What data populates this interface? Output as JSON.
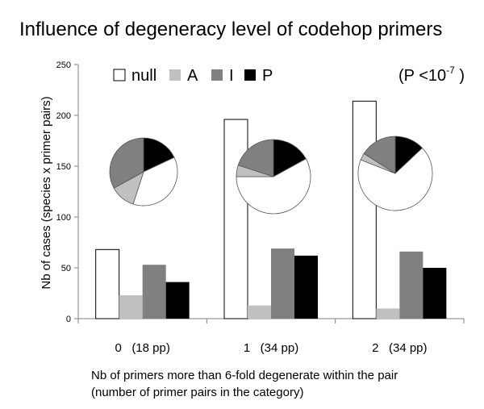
{
  "chart_data": {
    "type": "bar",
    "title": "Influence of degeneracy level of codehop primers",
    "annotation": {
      "prefix": "(P <10",
      "exponent": "-7",
      "suffix": " )"
    },
    "ylabel": "Nb of cases (species x primer pairs)",
    "xlabel_lines": [
      "Nb of primers more than 6-fold degenerate within the pair",
      "(number of primer pairs in the category)"
    ],
    "ylim": [
      0,
      250
    ],
    "yticks": [
      0,
      50,
      100,
      150,
      200,
      250
    ],
    "categories": [
      "0   (18 pp)",
      "1   (34 pp)",
      "2   (34 pp)"
    ],
    "legend_position": "top",
    "series": [
      {
        "name": "null",
        "color": "#ffffff",
        "values": [
          68,
          196,
          214
        ]
      },
      {
        "name": "A",
        "color": "#c0c0c0",
        "values": [
          23,
          13,
          10
        ]
      },
      {
        "name": "I",
        "color": "#808080",
        "values": [
          53,
          69,
          66
        ]
      },
      {
        "name": "P",
        "color": "#000000",
        "values": [
          36,
          62,
          50
        ]
      }
    ],
    "pies": [
      {
        "category": "0   (18 pp)",
        "order": [
          "P",
          "null",
          "A",
          "I"
        ],
        "values": [
          18,
          37,
          12,
          33
        ]
      },
      {
        "category": "1   (34 pp)",
        "order": [
          "P",
          "null",
          "A",
          "I"
        ],
        "values": [
          17,
          58,
          5,
          20
        ]
      },
      {
        "category": "2   (34 pp)",
        "order": [
          "P",
          "null",
          "A",
          "I"
        ],
        "values": [
          13,
          68,
          3,
          16
        ]
      }
    ]
  }
}
